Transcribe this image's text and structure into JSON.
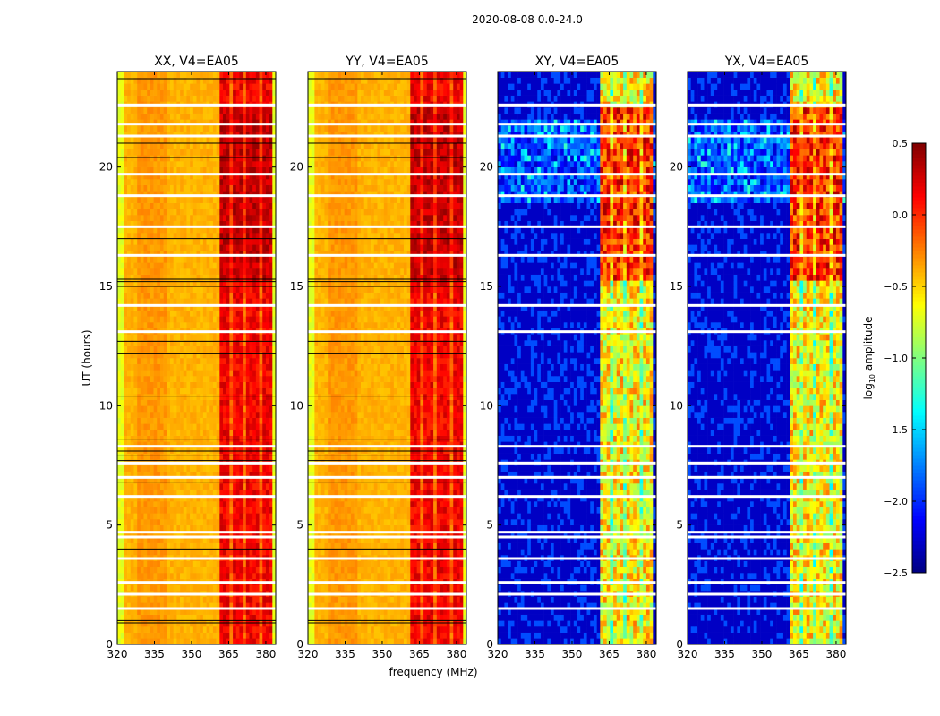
{
  "chart_data": {
    "type": "heatmap",
    "suptitle": "2020-08-08 0.0-24.0",
    "xlabel": "frequency (MHz)",
    "ylabel": "UT (hours)",
    "xlim": [
      320,
      384
    ],
    "ylim": [
      0,
      24
    ],
    "xticks": [
      "320",
      "335",
      "350",
      "365",
      "380"
    ],
    "xtick_values": [
      320,
      335,
      350,
      365,
      380
    ],
    "yticks": [
      "0",
      "5",
      "10",
      "15",
      "20"
    ],
    "ytick_values": [
      0,
      5,
      10,
      15,
      20
    ],
    "panels": [
      {
        "title": "XX, V4=EA05",
        "kind": "parallel"
      },
      {
        "title": "YY, V4=EA05",
        "kind": "parallel"
      },
      {
        "title": "XY, V4=EA05",
        "kind": "cross"
      },
      {
        "title": "YX, V4=EA05",
        "kind": "cross"
      }
    ],
    "model": {
      "bright_band_mhz": [
        362,
        382
      ],
      "parallel_background_log10": -0.4,
      "parallel_band_log10": 0.15,
      "cross_background_log10": -2.3,
      "cross_band_log10": -0.6,
      "high_activity_hours": [
        15.3,
        22.5
      ]
    },
    "flagged_hours_white": [
      1.5,
      2.1,
      2.6,
      3.6,
      4.5,
      4.7,
      6.2,
      7.0,
      7.6,
      8.3,
      13.1,
      14.2,
      16.3,
      17.5,
      18.8,
      19.7,
      21.3,
      21.8,
      22.6
    ],
    "flagged_hours_black": [
      0.9,
      1.0,
      4.0,
      6.8,
      7.7,
      7.9,
      8.1,
      8.6,
      10.4,
      12.2,
      12.7,
      15.0,
      15.2,
      15.3,
      17.0,
      20.4,
      21.0,
      23.7
    ],
    "colorbar": {
      "label": "log10 amplitude",
      "label_base": "log",
      "label_sub": "10",
      "label_rest": " amplitude",
      "range": [
        -2.5,
        0.5
      ],
      "ticks": [
        "0.5",
        "0.0",
        "−0.5",
        "−1.0",
        "−1.5",
        "−2.0",
        "−2.5"
      ],
      "tick_values": [
        0.5,
        0,
        -0.5,
        -1,
        -1.5,
        -2,
        -2.5
      ],
      "colormap": "jet"
    }
  }
}
